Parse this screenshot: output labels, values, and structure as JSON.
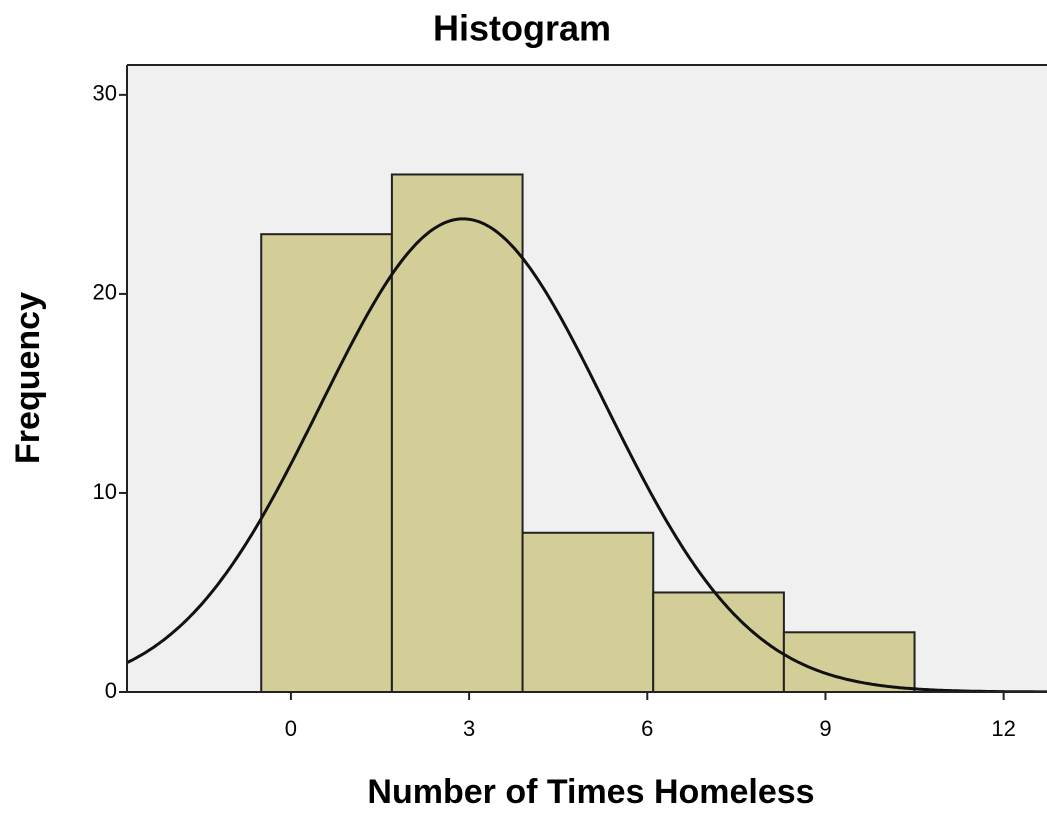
{
  "chart_data": {
    "type": "histogram",
    "title": "Histogram",
    "x_label": "Number of Times Homeless",
    "y_label": "Frequency",
    "bins": [
      -0.5,
      1.7,
      3.9,
      6.1,
      8.3,
      10.5
    ],
    "values": [
      23,
      26,
      8,
      5,
      3
    ],
    "color": "#d3ce97",
    "xlim": [
      -2.76,
      12.73
    ],
    "xticks": [
      0,
      3,
      6,
      9,
      12
    ],
    "ylim": [
      0,
      31.5
    ],
    "yticks": [
      0,
      10,
      20,
      30
    ],
    "normal_curve": {
      "mean": 2.9,
      "sd": 2.4
    }
  }
}
